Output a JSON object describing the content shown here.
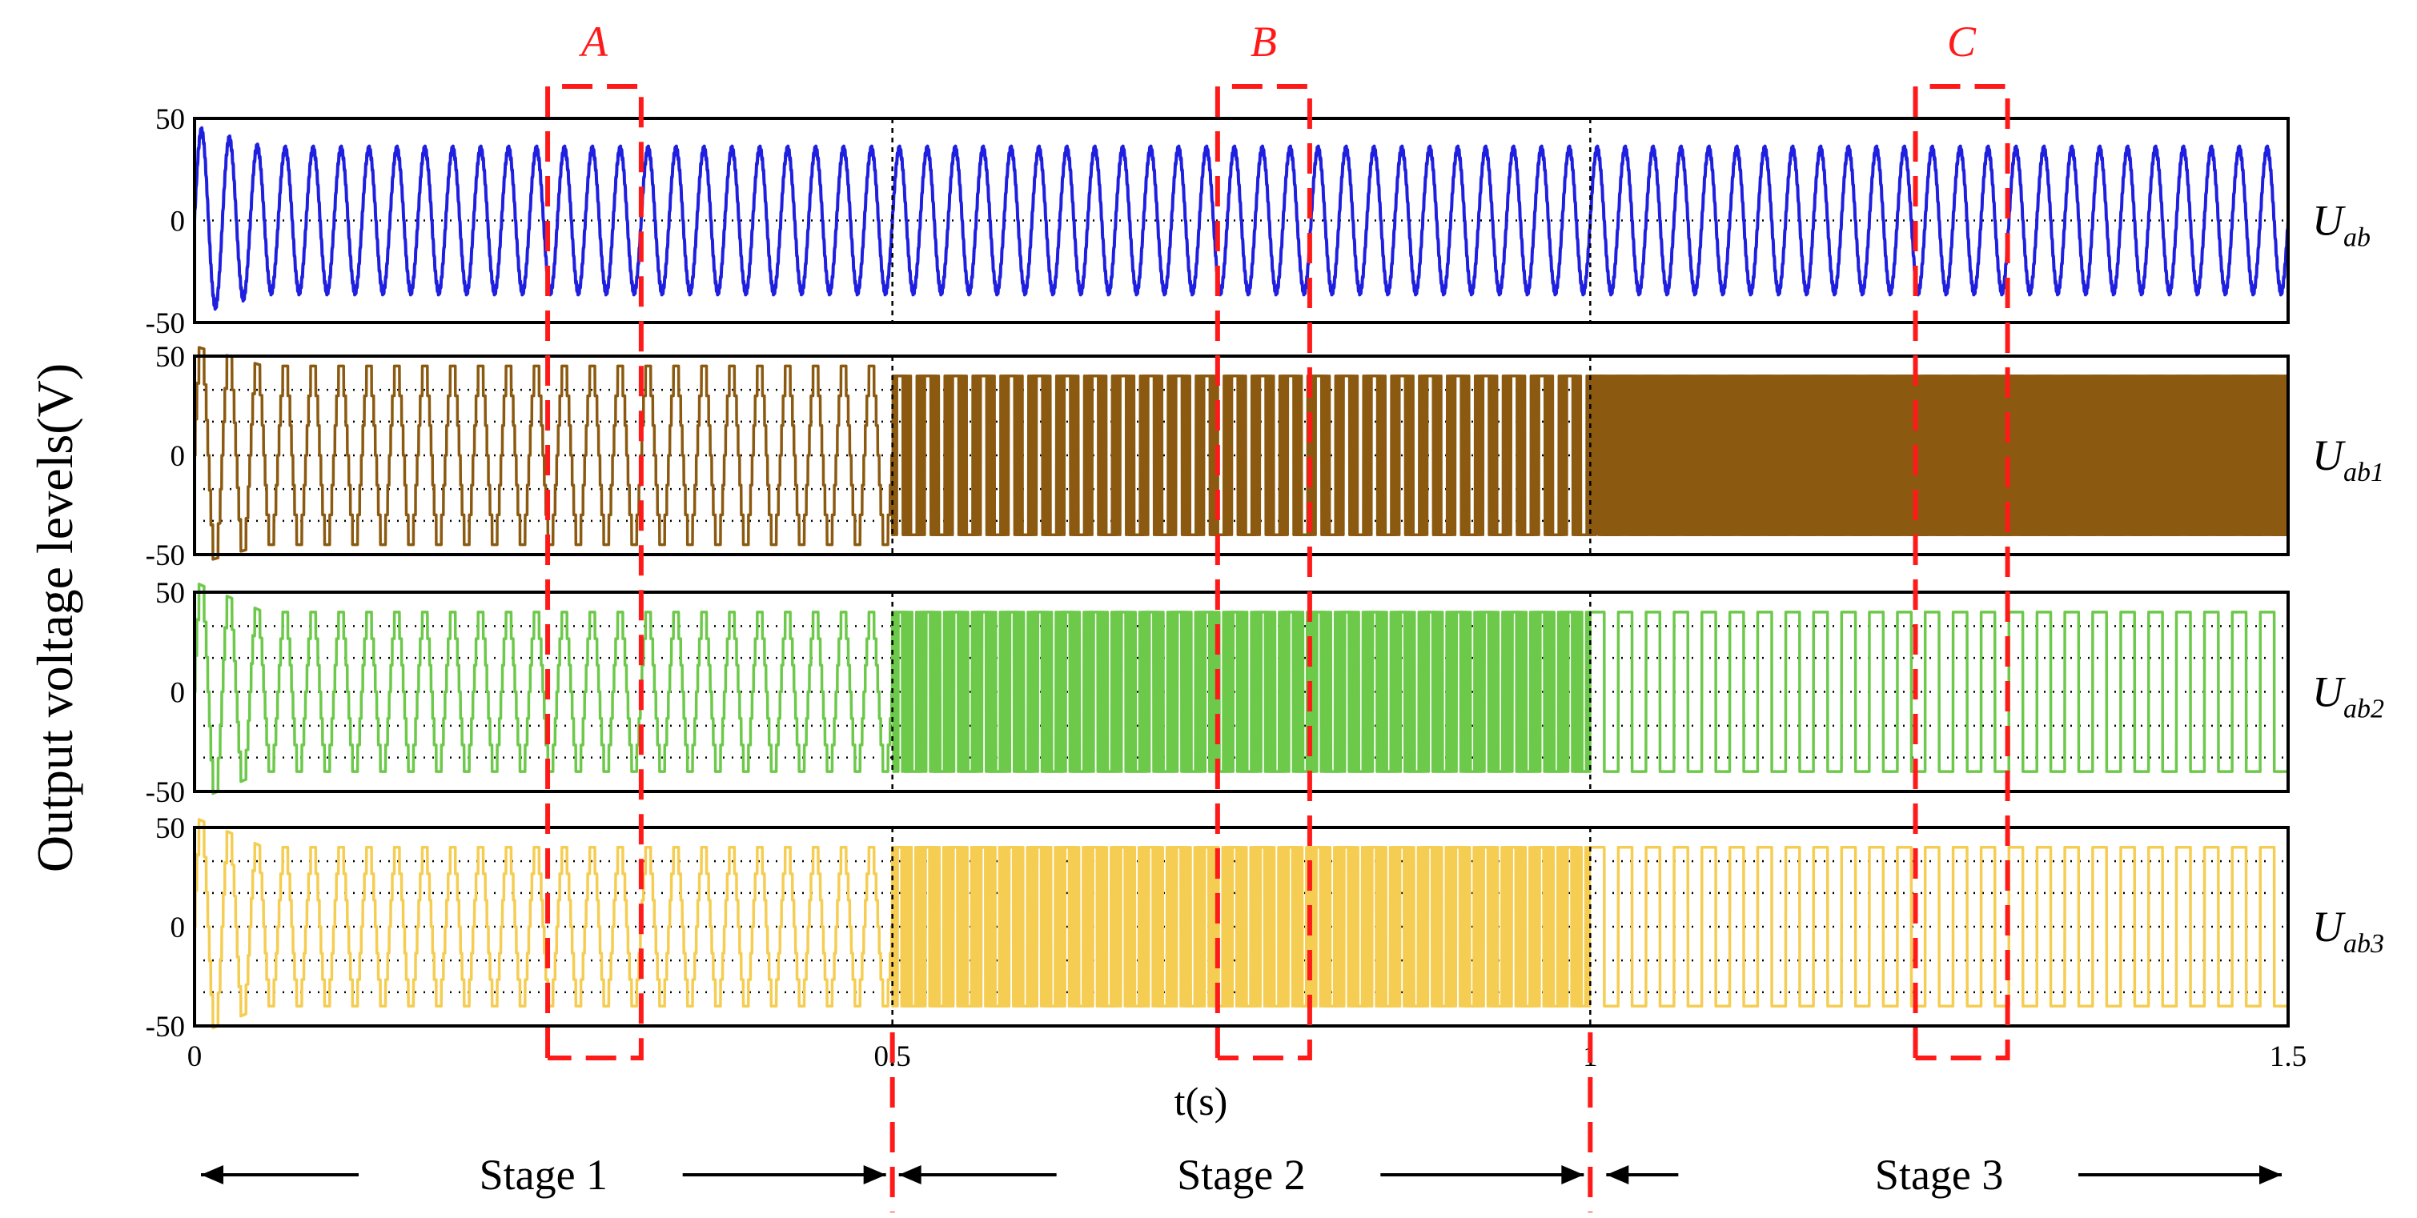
{
  "chart_data": {
    "type": "line",
    "ylabel": "Output voltage levels(V)",
    "xlabel": "t(s)",
    "xlim": [
      0,
      1.5
    ],
    "x_ticks": [
      "0",
      "0.5",
      "1",
      "1.5"
    ],
    "y_ticks": [
      "50",
      "0",
      "-50"
    ],
    "stage_boundaries": [
      0.5,
      1.0
    ],
    "series": [
      {
        "name": "U",
        "sub": "ab",
        "color": "#1f1fe0",
        "ylim": [
          -50,
          50
        ],
        "fundamental_hz": 50,
        "amplitude_stage1": 35,
        "amplitude_stage2": 35,
        "amplitude_stage3": 35,
        "waveform_stage1": "sinusoid",
        "waveform_stage2": "sinusoid",
        "waveform_stage3": "sinusoid",
        "startup_overshoot": 45
      },
      {
        "name": "U",
        "sub": "ab1",
        "color": "#8b5a10",
        "ylim": [
          -50,
          50
        ],
        "fundamental_hz": 50,
        "amplitude_stage1": 45,
        "amplitude_stage2": 40,
        "amplitude_stage3": 40,
        "waveform_stage1": "multilevel staircase",
        "waveform_stage2": "two-level PWM",
        "waveform_stage3": "two-level high-frequency PWM",
        "startup_overshoot": 55,
        "dotted_levels": [
          -50,
          -33,
          -17,
          0,
          17,
          33,
          50
        ]
      },
      {
        "name": "U",
        "sub": "ab2",
        "color": "#6cc94a",
        "ylim": [
          -50,
          50
        ],
        "fundamental_hz": 50,
        "amplitude_stage1": 40,
        "amplitude_stage2": 40,
        "amplitude_stage3": 40,
        "waveform_stage1": "multilevel staircase",
        "waveform_stage2": "two-level PWM",
        "waveform_stage3": "square wave",
        "startup_overshoot": 55,
        "dotted_levels": [
          -50,
          -33,
          -17,
          0,
          17,
          33,
          50
        ]
      },
      {
        "name": "U",
        "sub": "ab3",
        "color": "#f5cd52",
        "ylim": [
          -50,
          50
        ],
        "fundamental_hz": 50,
        "amplitude_stage1": 40,
        "amplitude_stage2": 40,
        "amplitude_stage3": 40,
        "waveform_stage1": "multilevel staircase",
        "waveform_stage2": "two-level PWM",
        "waveform_stage3": "square wave",
        "startup_overshoot": 55,
        "dotted_levels": [
          -50,
          -33,
          -17,
          0,
          17,
          33,
          50
        ]
      }
    ],
    "zoom_boxes": [
      {
        "label": "A",
        "t_start": 0.253,
        "t_end": 0.32
      },
      {
        "label": "B",
        "t_start": 0.733,
        "t_end": 0.799
      },
      {
        "label": "C",
        "t_start": 1.233,
        "t_end": 1.299
      }
    ],
    "stages": [
      {
        "label": "Stage 1",
        "t_start": 0,
        "t_end": 0.5
      },
      {
        "label": "Stage 2",
        "t_start": 0.5,
        "t_end": 1.0
      },
      {
        "label": "Stage 3",
        "t_start": 1.0,
        "t_end": 1.5
      }
    ],
    "box_color": "#ff1a1a"
  }
}
